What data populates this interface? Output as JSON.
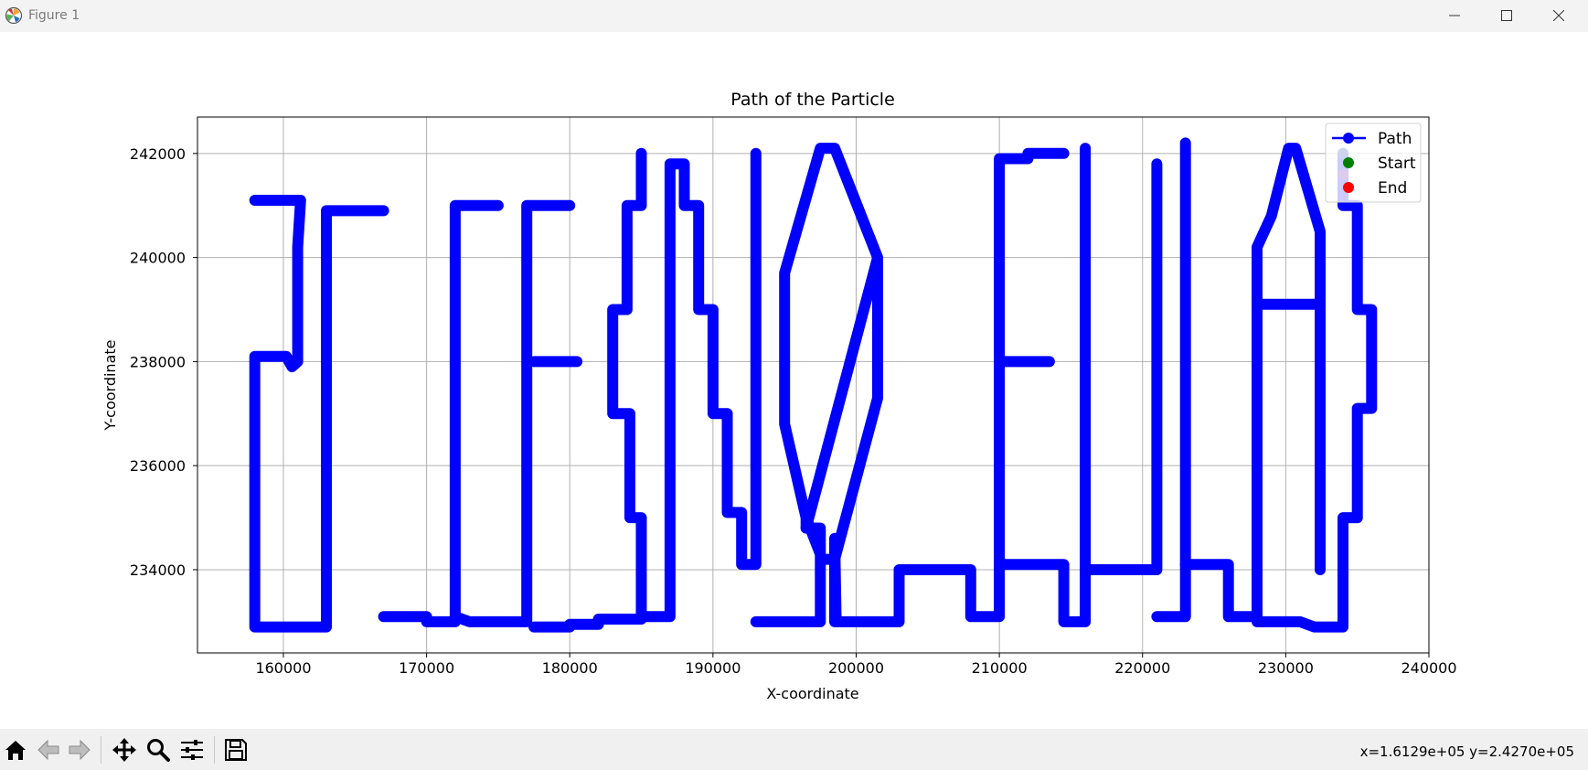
{
  "window": {
    "title": "Figure 1"
  },
  "status": {
    "coords": "x=1.6129e+05 y=2.4270e+05"
  },
  "toolbar": {
    "buttons": [
      {
        "name": "home-icon",
        "label": "Home"
      },
      {
        "name": "back-icon",
        "label": "Back"
      },
      {
        "name": "forward-icon",
        "label": "Forward"
      },
      {
        "name": "pan-icon",
        "label": "Pan"
      },
      {
        "name": "zoom-icon",
        "label": "Zoom"
      },
      {
        "name": "configure-subplots-icon",
        "label": "Configure subplots"
      },
      {
        "name": "save-icon",
        "label": "Save"
      }
    ]
  },
  "colors": {
    "path": "#0000ff",
    "start": "#008000",
    "end": "#ff0000",
    "grid": "#b0b0b0"
  },
  "chart_data": {
    "type": "line",
    "title": "Path of the Particle",
    "xlabel": "X-coordinate",
    "ylabel": "Y-coordinate",
    "xlim": [
      154000,
      240000
    ],
    "ylim": [
      232400,
      242700
    ],
    "xticks": [
      160000,
      170000,
      180000,
      190000,
      200000,
      210000,
      220000,
      230000,
      240000
    ],
    "yticks": [
      234000,
      236000,
      238000,
      240000,
      242000
    ],
    "xtick_labels": [
      "160000",
      "170000",
      "180000",
      "190000",
      "200000",
      "210000",
      "220000",
      "230000",
      "240000"
    ],
    "ytick_labels": [
      "234000",
      "236000",
      "238000",
      "240000",
      "242000"
    ],
    "grid": true,
    "legend": {
      "position": "top-right",
      "entries": [
        "Path",
        "Start",
        "End"
      ]
    },
    "series": [
      {
        "name": "Path",
        "style": "line-with-markers",
        "segments": [
          [
            [
              158000,
              241100
            ],
            [
              161200,
              241100
            ],
            [
              161000,
              240200
            ],
            [
              161000,
              238000
            ],
            [
              160600,
              237900
            ],
            [
              160200,
              238100
            ],
            [
              158000,
              238100
            ],
            [
              158000,
              232900
            ],
            [
              163000,
              232900
            ],
            [
              163000,
              240900
            ],
            [
              167000,
              240900
            ]
          ],
          [
            [
              167000,
              233100
            ],
            [
              170000,
              233100
            ],
            [
              170000,
              233000
            ],
            [
              172000,
              233000
            ],
            [
              172000,
              241000
            ],
            [
              175000,
              241000
            ]
          ],
          [
            [
              172000,
              233100
            ],
            [
              173000,
              233000
            ],
            [
              177000,
              233000
            ],
            [
              177000,
              241000
            ],
            [
              180000,
              241000
            ]
          ],
          [
            [
              177500,
              238000
            ],
            [
              180500,
              238000
            ]
          ],
          [
            [
              177500,
              232900
            ],
            [
              180000,
              232900
            ],
            [
              180000,
              232950
            ],
            [
              182000,
              232950
            ],
            [
              182000,
              233050
            ],
            [
              185000,
              233050
            ],
            [
              185000,
              235000
            ],
            [
              184200,
              235000
            ],
            [
              184200,
              237000
            ],
            [
              183000,
              237000
            ],
            [
              183000,
              239000
            ],
            [
              184000,
              239000
            ],
            [
              184000,
              241000
            ],
            [
              185000,
              241000
            ],
            [
              185000,
              242000
            ]
          ],
          [
            [
              185000,
              233100
            ],
            [
              187000,
              233100
            ],
            [
              187000,
              241800
            ],
            [
              188000,
              241800
            ],
            [
              188000,
              241000
            ],
            [
              189000,
              241000
            ],
            [
              189000,
              239000
            ],
            [
              190000,
              239000
            ],
            [
              190000,
              237000
            ],
            [
              191000,
              237000
            ],
            [
              191000,
              235100
            ],
            [
              192000,
              235100
            ],
            [
              192000,
              234100
            ],
            [
              193000,
              234100
            ],
            [
              193000,
              242000
            ]
          ],
          [
            [
              193000,
              233000
            ],
            [
              197500,
              233000
            ],
            [
              197500,
              234800
            ],
            [
              196500,
              234800
            ],
            [
              196500,
              235000
            ],
            [
              197500,
              234300
            ],
            [
              197500,
              234200
            ],
            [
              198500,
              234200
            ],
            [
              201500,
              237300
            ],
            [
              201500,
              240000
            ],
            [
              198500,
              242100
            ],
            [
              197500,
              242100
            ],
            [
              195000,
              239700
            ],
            [
              195000,
              236800
            ],
            [
              196500,
              235000
            ]
          ],
          [
            [
              196500,
              234800
            ],
            [
              201500,
              240000
            ],
            [
              201500,
              239600
            ]
          ],
          [
            [
              198500,
              233000
            ],
            [
              198500,
              234600
            ],
            [
              198600,
              233000
            ],
            [
              203000,
              233000
            ],
            [
              203000,
              234000
            ],
            [
              208000,
              234000
            ],
            [
              208000,
              233100
            ],
            [
              210000,
              233100
            ],
            [
              210000,
              241900
            ],
            [
              212000,
              241900
            ],
            [
              212000,
              242000
            ],
            [
              214500,
              242000
            ]
          ],
          [
            [
              210000,
              238000
            ],
            [
              213500,
              238000
            ]
          ],
          [
            [
              210000,
              234100
            ],
            [
              214500,
              234100
            ],
            [
              214500,
              233000
            ],
            [
              216000,
              233000
            ],
            [
              216000,
              242100
            ]
          ],
          [
            [
              216000,
              234000
            ],
            [
              221000,
              234000
            ],
            [
              221000,
              241800
            ]
          ],
          [
            [
              221000,
              233100
            ],
            [
              223000,
              233100
            ],
            [
              223000,
              242200
            ]
          ],
          [
            [
              223000,
              234100
            ],
            [
              226000,
              234100
            ],
            [
              226000,
              233100
            ],
            [
              228000,
              233100
            ],
            [
              228000,
              240200
            ],
            [
              229000,
              240800
            ],
            [
              230200,
              242100
            ],
            [
              230700,
              242100
            ],
            [
              232400,
              240500
            ],
            [
              232400,
              234000
            ]
          ],
          [
            [
              228000,
              239100
            ],
            [
              232200,
              239100
            ]
          ],
          [
            [
              228000,
              233000
            ],
            [
              231000,
              233000
            ],
            [
              232000,
              232900
            ],
            [
              234000,
              232900
            ],
            [
              234000,
              235000
            ],
            [
              235000,
              235000
            ],
            [
              235000,
              237100
            ],
            [
              236000,
              237100
            ],
            [
              236000,
              239000
            ],
            [
              235000,
              239000
            ],
            [
              235000,
              241000
            ],
            [
              234000,
              241000
            ],
            [
              234000,
              242000
            ]
          ]
        ]
      },
      {
        "name": "Start",
        "style": "marker",
        "points": [
          [
            234000,
            242000
          ]
        ]
      },
      {
        "name": "End",
        "style": "marker",
        "points": [
          [
            234000,
            241600
          ]
        ]
      }
    ]
  }
}
